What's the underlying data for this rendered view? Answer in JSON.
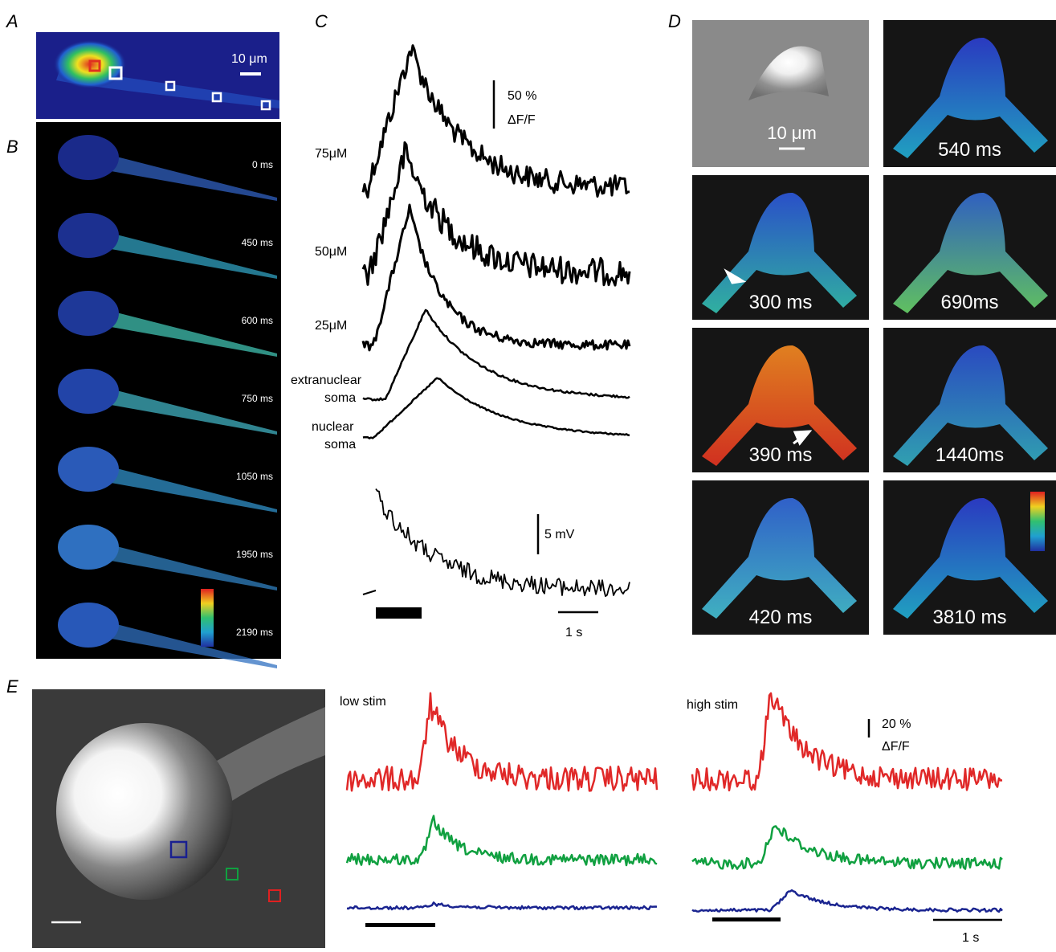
{
  "panels": {
    "A": {
      "label": "A",
      "scale": "10 μm"
    },
    "B": {
      "label": "B",
      "times": [
        "0 ms",
        "450 ms",
        "600 ms",
        "750 ms",
        "1050 ms",
        "1950 ms",
        "2190 ms"
      ]
    },
    "C": {
      "label": "C",
      "scale_pct": "50 %",
      "scale_unit": "ΔF/F",
      "traces": [
        "75μM",
        "50μM",
        "25μM"
      ],
      "extranuclear": [
        "extranuclear",
        "soma"
      ],
      "nuclear": [
        "nuclear",
        "soma"
      ],
      "scale_mv": "5 mV",
      "scale_time": "1 s"
    },
    "D": {
      "label": "D",
      "scale": "10 μm",
      "times": [
        "540 ms",
        "300 ms",
        "690ms",
        "390 ms",
        "1440ms",
        "420 ms",
        "3810 ms"
      ]
    },
    "E": {
      "label": "E",
      "low": "low stim",
      "high": "high stim",
      "scale_pct": "20 %",
      "scale_unit": "ΔF/F",
      "scale_time": "1 s"
    }
  }
}
